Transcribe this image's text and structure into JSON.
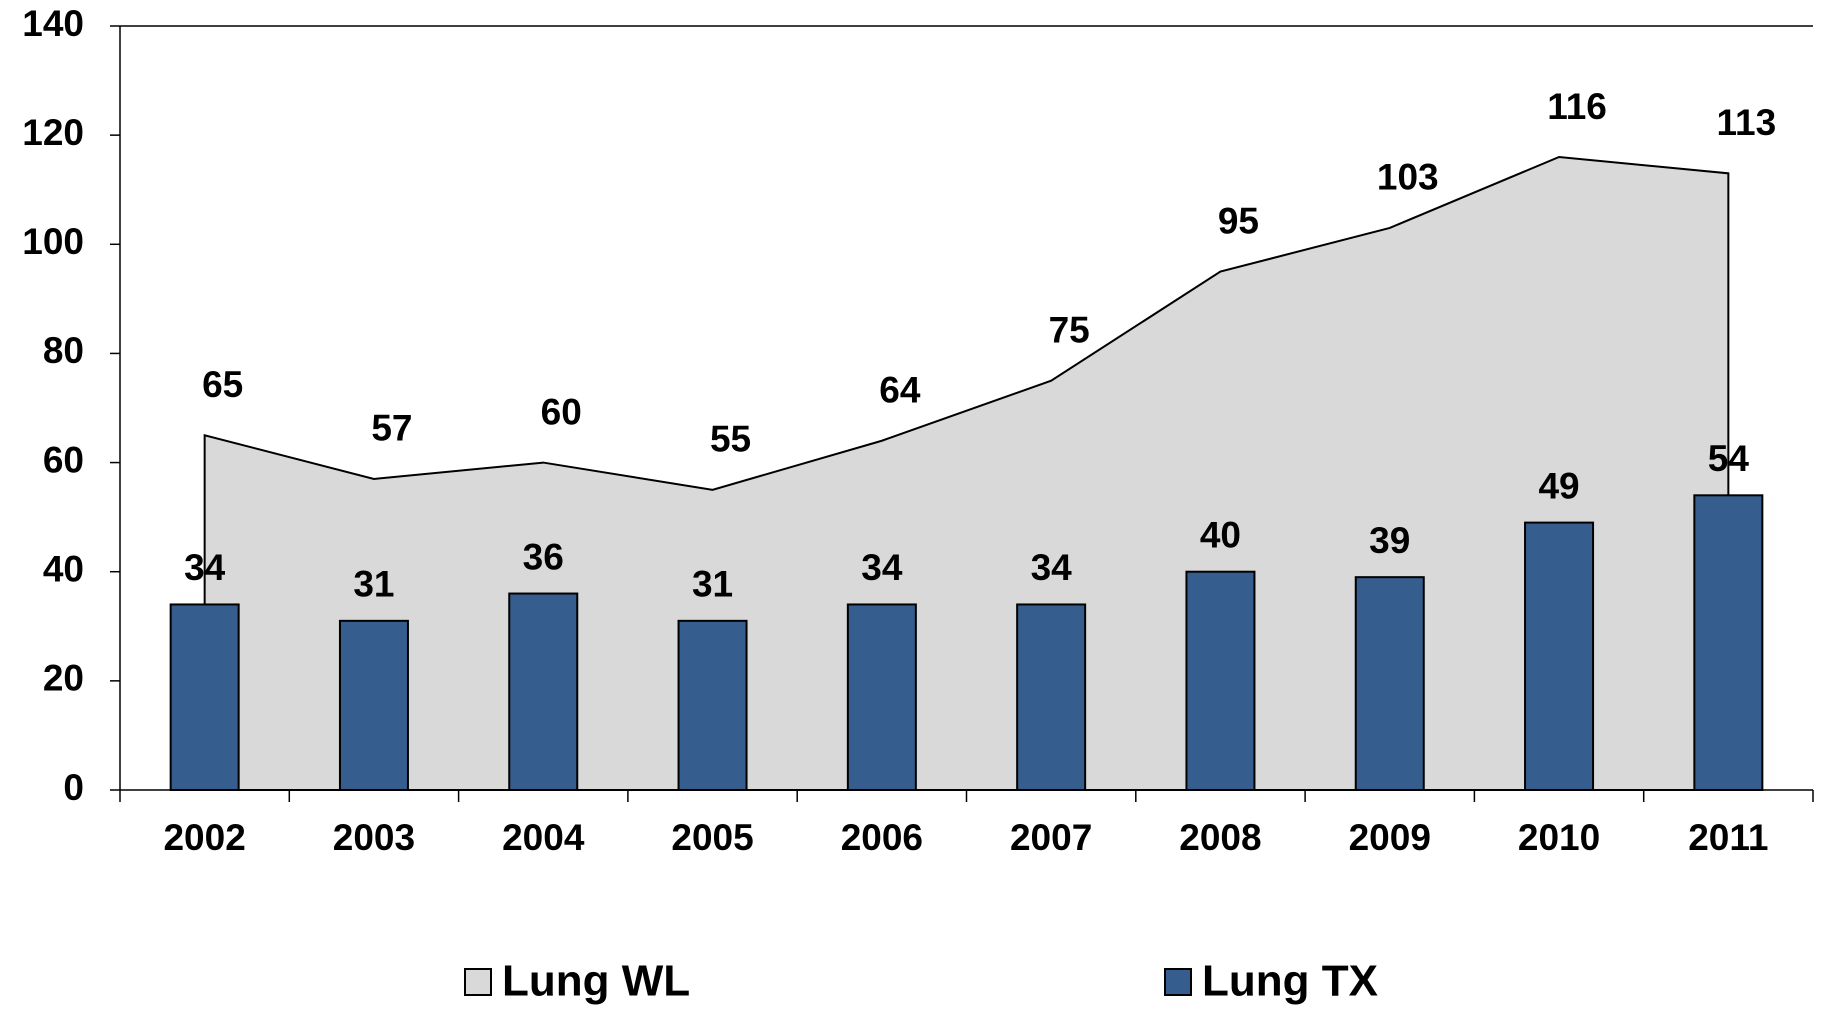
{
  "chart_data": {
    "type": "bar",
    "categories": [
      "2002",
      "2003",
      "2004",
      "2005",
      "2006",
      "2007",
      "2008",
      "2009",
      "2010",
      "2011"
    ],
    "series": [
      {
        "name": "Lung WL",
        "type": "area",
        "color": "#d9d9d9",
        "values": [
          65,
          57,
          60,
          55,
          64,
          75,
          95,
          103,
          116,
          113
        ]
      },
      {
        "name": "Lung TX",
        "type": "bar",
        "color": "#355e8e",
        "values": [
          34,
          31,
          36,
          31,
          34,
          34,
          40,
          39,
          49,
          54
        ]
      }
    ],
    "ylim": [
      0,
      140
    ],
    "yticks": [
      0,
      20,
      40,
      60,
      80,
      100,
      120,
      140
    ],
    "grid": false,
    "legend": "bottom"
  }
}
